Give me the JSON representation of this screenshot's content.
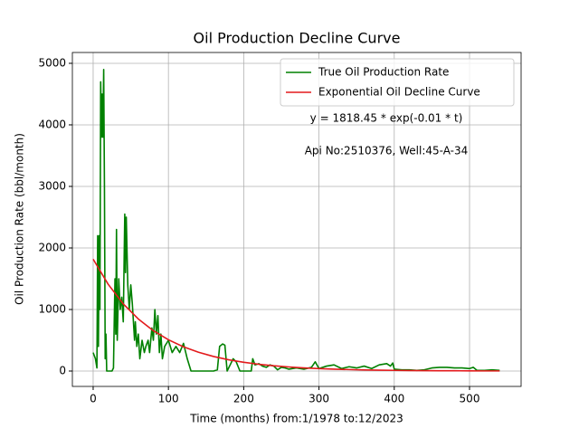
{
  "chart_data": {
    "type": "line",
    "title": "Oil Production Decline Curve",
    "x_label": "Time (months) from:1/1978 to:12/2023",
    "y_label": "Oil Production Rate (bbl/month)",
    "annotations": [
      "y = 1818.45 * exp(-0.01 * t)",
      "Api No:2510376, Well:45-A-34"
    ],
    "legend": "upper right",
    "grid": true,
    "xlim": [
      -27.6,
      568.5
    ],
    "xticks": [
      0,
      100,
      200,
      300,
      400,
      500
    ],
    "ylim": [
      -250,
      5176
    ],
    "yticks": [
      0,
      1000,
      2000,
      3000,
      4000,
      5000
    ],
    "series": [
      {
        "name": "True Oil Production Rate",
        "color": "#008000",
        "x": [
          0,
          3,
          5,
          6,
          7,
          8,
          9,
          10,
          11,
          12,
          13,
          14,
          15,
          16,
          17,
          18,
          22,
          25,
          27,
          28,
          29,
          30,
          31,
          32,
          34,
          36,
          38,
          40,
          42,
          43,
          44,
          46,
          48,
          50,
          52,
          54,
          55,
          56,
          58,
          60,
          62,
          65,
          68,
          70,
          73,
          75,
          78,
          80,
          82,
          84,
          86,
          88,
          90,
          92,
          95,
          100,
          105,
          110,
          115,
          120,
          125,
          130,
          140,
          150,
          160,
          165,
          168,
          172,
          175,
          178,
          182,
          186,
          190,
          195,
          200,
          210,
          212,
          215,
          220,
          225,
          230,
          235,
          240,
          245,
          250,
          255,
          260,
          270,
          280,
          290,
          295,
          300,
          310,
          320,
          330,
          340,
          350,
          360,
          370,
          380,
          390,
          395,
          398,
          400,
          410,
          420,
          430,
          440,
          450,
          460,
          470,
          480,
          490,
          500,
          505,
          510,
          520,
          530,
          540
        ],
        "values": [
          300,
          200,
          50,
          2200,
          400,
          2200,
          1000,
          4700,
          3800,
          4500,
          3800,
          4900,
          3000,
          200,
          600,
          0,
          0,
          0,
          50,
          800,
          1500,
          600,
          2300,
          500,
          1500,
          1000,
          1200,
          800,
          2550,
          1600,
          2500,
          1400,
          1000,
          1400,
          1100,
          700,
          500,
          800,
          400,
          600,
          200,
          500,
          300,
          400,
          500,
          300,
          700,
          500,
          1000,
          600,
          900,
          300,
          600,
          200,
          400,
          500,
          300,
          400,
          300,
          450,
          200,
          0,
          0,
          0,
          0,
          20,
          400,
          440,
          420,
          0,
          100,
          200,
          150,
          0,
          0,
          0,
          200,
          100,
          120,
          80,
          60,
          100,
          80,
          20,
          60,
          50,
          30,
          50,
          30,
          60,
          150,
          40,
          80,
          100,
          40,
          70,
          50,
          80,
          40,
          100,
          120,
          80,
          130,
          30,
          20,
          20,
          10,
          20,
          50,
          60,
          60,
          50,
          50,
          40,
          60,
          10,
          10,
          20,
          10
        ]
      },
      {
        "name": "Exponential Oil Decline Curve",
        "color": "#e31a1c",
        "x": [
          0,
          20,
          40,
          60,
          80,
          100,
          120,
          140,
          160,
          180,
          200,
          220,
          240,
          260,
          280,
          300,
          320,
          340,
          360,
          380,
          400,
          420,
          440,
          460,
          480,
          500,
          520,
          540
        ],
        "values": [
          1818,
          1409,
          1091,
          846,
          655,
          508,
          393,
          305,
          236,
          183,
          142,
          110,
          85,
          66,
          51,
          39,
          30,
          24,
          18,
          14,
          11,
          8,
          7,
          5,
          4,
          3,
          2,
          2
        ]
      }
    ]
  }
}
